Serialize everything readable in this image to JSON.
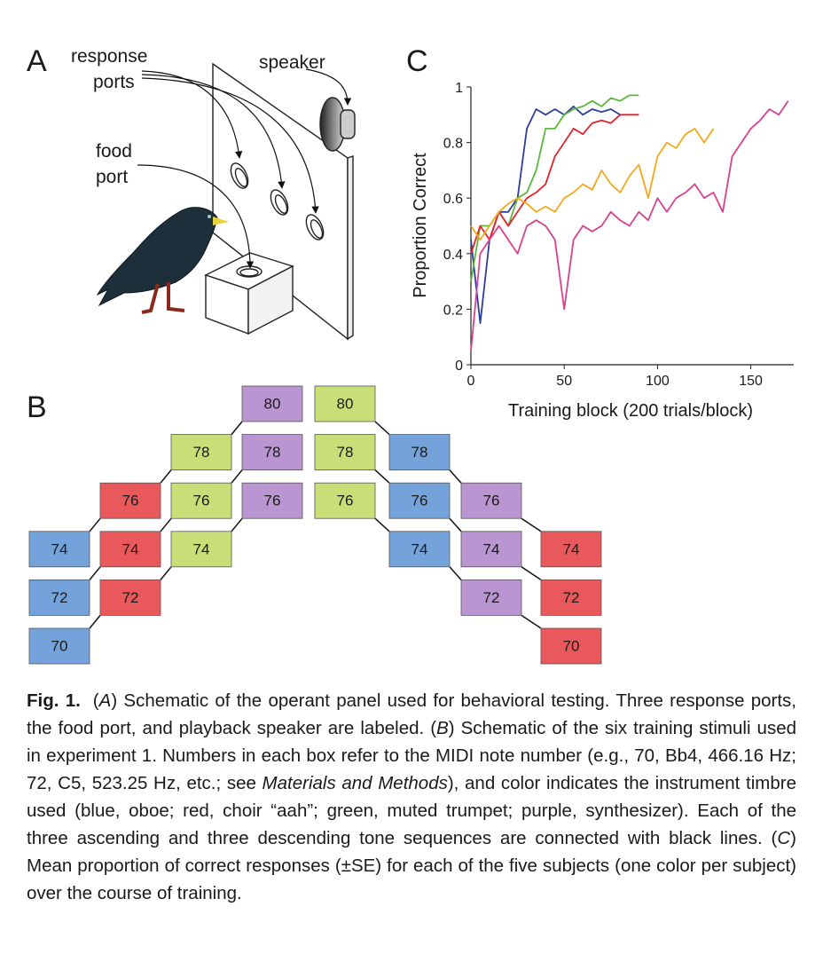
{
  "panel_labels": [
    "A",
    "B",
    "C"
  ],
  "panel_a": {
    "response_ports": [
      "response",
      "ports"
    ],
    "speaker": "speaker",
    "food_port": [
      "food",
      "port"
    ]
  },
  "panel_b": {
    "columns": [
      {
        "color": "#74a3dc",
        "notes": [
          74,
          72,
          70
        ]
      },
      {
        "color": "#e9585b",
        "notes": [
          76,
          74,
          72
        ]
      },
      {
        "color": "#c8df77",
        "notes": [
          78,
          76,
          74
        ]
      },
      {
        "color": "#b995d1",
        "notes": [
          80,
          78,
          76
        ]
      },
      {
        "color": "#c8df77",
        "notes": [
          80,
          78,
          76
        ]
      },
      {
        "color": "#74a3dc",
        "notes": [
          78,
          76,
          74
        ]
      },
      {
        "color": "#b995d1",
        "notes": [
          76,
          74,
          72
        ]
      },
      {
        "color": "#e9585b",
        "notes": [
          74,
          72,
          70
        ]
      }
    ]
  },
  "chart_data": {
    "type": "line",
    "x_label": "Training block (200 trials/block)",
    "y_label": "Proportion Correct",
    "x": [
      0,
      5,
      10,
      15,
      20,
      25,
      30,
      35,
      40,
      45,
      50,
      55,
      60,
      65,
      70,
      75,
      80,
      85,
      90,
      95,
      100,
      105,
      110,
      115,
      120,
      125,
      130,
      135,
      140,
      145,
      150,
      155,
      160,
      165,
      170
    ],
    "xlim": [
      0,
      173
    ],
    "xticks": [
      0,
      50,
      100,
      150
    ],
    "ylim": [
      0,
      1
    ],
    "yticks": [
      0,
      0.2,
      0.4,
      0.6,
      0.8,
      1
    ],
    "series": [
      {
        "color": "#2c3e9e",
        "values": [
          0.45,
          0.15,
          0.45,
          0.55,
          0.55,
          0.6,
          0.85,
          0.92,
          0.9,
          0.92,
          0.9,
          0.93,
          0.9,
          0.92,
          0.91,
          0.92,
          0.9,
          null,
          null,
          null,
          null,
          null,
          null,
          null,
          null,
          null,
          null,
          null,
          null,
          null,
          null,
          null,
          null,
          null,
          null
        ]
      },
      {
        "color": "#5cb83a",
        "values": [
          0.3,
          0.5,
          0.5,
          0.55,
          0.5,
          0.6,
          0.62,
          0.7,
          0.85,
          0.85,
          0.9,
          0.92,
          0.93,
          0.95,
          0.93,
          0.96,
          0.95,
          0.97,
          0.97,
          null,
          null,
          null,
          null,
          null,
          null,
          null,
          null,
          null,
          null,
          null,
          null,
          null,
          null,
          null,
          null
        ]
      },
      {
        "color": "#e0252a",
        "values": [
          0.4,
          0.5,
          0.45,
          0.55,
          0.5,
          0.55,
          0.6,
          0.62,
          0.65,
          0.75,
          0.8,
          0.85,
          0.83,
          0.87,
          0.88,
          0.87,
          0.9,
          0.9,
          0.9,
          null,
          null,
          null,
          null,
          null,
          null,
          null,
          null,
          null,
          null,
          null,
          null,
          null,
          null,
          null,
          null
        ]
      },
      {
        "color": "#f5a81c",
        "values": [
          0.5,
          0.45,
          0.5,
          0.55,
          0.58,
          0.6,
          0.58,
          0.55,
          0.57,
          0.55,
          0.6,
          0.62,
          0.65,
          0.63,
          0.7,
          0.65,
          0.62,
          0.68,
          0.72,
          0.6,
          0.75,
          0.8,
          0.78,
          0.83,
          0.85,
          0.8,
          0.85,
          null,
          null,
          null,
          null,
          null,
          null,
          null,
          null
        ]
      },
      {
        "color": "#d9418f",
        "values": [
          0.05,
          0.4,
          0.45,
          0.5,
          0.45,
          0.4,
          0.5,
          0.52,
          0.5,
          0.45,
          0.2,
          0.45,
          0.5,
          0.48,
          0.5,
          0.55,
          0.52,
          0.5,
          0.55,
          0.52,
          0.6,
          0.55,
          0.6,
          0.62,
          0.65,
          0.6,
          0.62,
          0.55,
          0.75,
          0.8,
          0.85,
          0.88,
          0.92,
          0.9,
          0.95
        ]
      }
    ]
  },
  "caption": {
    "label": "Fig. 1.",
    "segments": [
      "(",
      "A",
      ") Schematic of the operant panel used for behavioral testing. Three response ports, the food port, and playback speaker are labeled. (",
      "B",
      ") Schematic of the six training stimuli used in experiment 1. Numbers in each box refer to the MIDI note number (e.g., 70, Bb4, 466.16 Hz; 72, C5, 523.25 Hz, etc.; see ",
      "Materials and Methods",
      "), and color indicates the instrument timbre used (blue, oboe; red, choir “aah”; green, muted trumpet; purple, synthesizer). Each of the three ascending and three descending tone sequences are connected with black lines. (",
      "C",
      ") Mean proportion of correct responses (±SE) for each of the five subjects (one color per subject) over the course of training."
    ]
  }
}
